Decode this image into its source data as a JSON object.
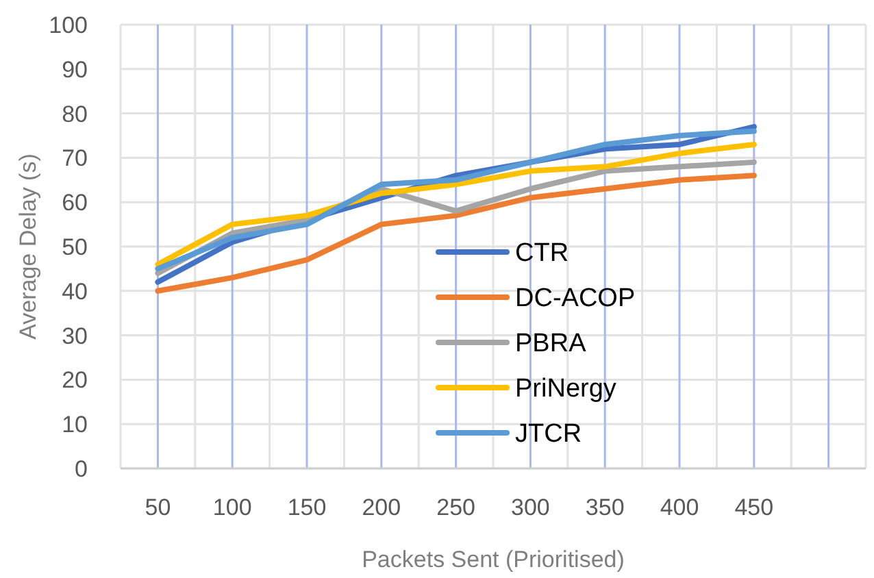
{
  "chart_data": {
    "type": "line",
    "xlabel": "Packets Sent (Prioritised)",
    "ylabel": "Average Delay (s)",
    "categories": [
      "50",
      "100",
      "150",
      "200",
      "250",
      "300",
      "350",
      "400",
      "450",
      null
    ],
    "series": [
      {
        "name": "CTR",
        "color": "#4472c4",
        "values": [
          42,
          51,
          56,
          61,
          66,
          69,
          72,
          73,
          77,
          null
        ]
      },
      {
        "name": "DC-ACOP",
        "color": "#ed7d31",
        "values": [
          40,
          43,
          47,
          55,
          57,
          61,
          63,
          65,
          66,
          null
        ]
      },
      {
        "name": "PBRA",
        "color": "#a5a5a5",
        "values": [
          44,
          53,
          56,
          63,
          58,
          63,
          67,
          68,
          69,
          null
        ]
      },
      {
        "name": "PriNergy",
        "color": "#ffc000",
        "values": [
          46,
          55,
          57,
          62,
          64,
          67,
          68,
          71,
          73,
          null
        ]
      },
      {
        "name": "JTCR",
        "color": "#5b9bd5",
        "values": [
          45,
          52,
          55,
          64,
          65,
          69,
          73,
          75,
          76,
          null
        ]
      }
    ],
    "ylim": [
      0,
      100
    ],
    "yticks": [
      0,
      10,
      20,
      30,
      40,
      50,
      60,
      70,
      80,
      90,
      100
    ],
    "grid": true,
    "legend": "right",
    "marker": "none",
    "line_style": "solid"
  }
}
